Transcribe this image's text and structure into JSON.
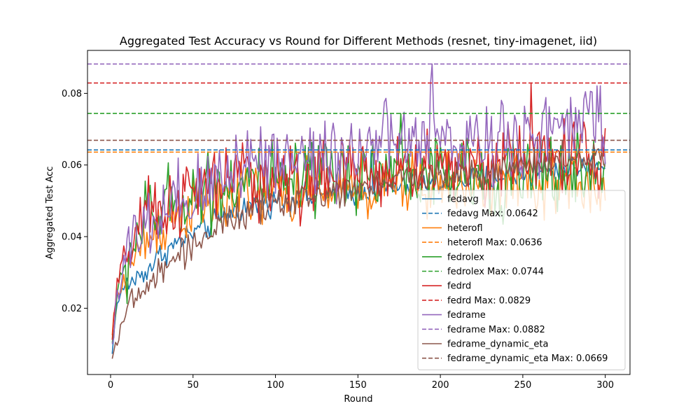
{
  "chart_data": {
    "type": "line",
    "title": "Aggregated Test Accuracy vs Round for Different Methods (resnet, tiny-imagenet, iid)",
    "xlabel": "Round",
    "ylabel": "Aggregated Test Acc",
    "xlim": [
      -14,
      315
    ],
    "ylim": [
      0.0015,
      0.092
    ],
    "xticks": [
      0,
      50,
      100,
      150,
      200,
      250,
      300
    ],
    "xtick_labels": [
      "0",
      "50",
      "100",
      "150",
      "200",
      "250",
      "300"
    ],
    "yticks": [
      0.02,
      0.04,
      0.06,
      0.08
    ],
    "ytick_labels": [
      "0.02",
      "0.04",
      "0.06",
      "0.08"
    ],
    "grid": false,
    "legend_position": "lower-right",
    "series": [
      {
        "name": "fedavg",
        "color": "#1f77b4",
        "max": 0.0642,
        "max_label": "fedavg Max: 0.0642",
        "anchors": [
          [
            1,
            0.007
          ],
          [
            3,
            0.019
          ],
          [
            6,
            0.024
          ],
          [
            10,
            0.027
          ],
          [
            15,
            0.028
          ],
          [
            20,
            0.03
          ],
          [
            25,
            0.032
          ],
          [
            30,
            0.035
          ],
          [
            40,
            0.038
          ],
          [
            50,
            0.041
          ],
          [
            60,
            0.043
          ],
          [
            70,
            0.046
          ],
          [
            80,
            0.048
          ],
          [
            90,
            0.049
          ],
          [
            100,
            0.05
          ],
          [
            120,
            0.051
          ],
          [
            140,
            0.052
          ],
          [
            160,
            0.053
          ],
          [
            180,
            0.054
          ],
          [
            200,
            0.055
          ],
          [
            220,
            0.056
          ],
          [
            240,
            0.057
          ],
          [
            260,
            0.058
          ],
          [
            280,
            0.059
          ],
          [
            300,
            0.06
          ]
        ],
        "noise": 0.0018
      },
      {
        "name": "heterofl",
        "color": "#ff7f0e",
        "max": 0.0636,
        "max_label": "heterofl Max: 0.0636",
        "anchors": [
          [
            1,
            0.012
          ],
          [
            3,
            0.02
          ],
          [
            6,
            0.025
          ],
          [
            10,
            0.03
          ],
          [
            15,
            0.034
          ],
          [
            20,
            0.038
          ],
          [
            30,
            0.043
          ],
          [
            40,
            0.046
          ],
          [
            50,
            0.048
          ],
          [
            60,
            0.049
          ],
          [
            70,
            0.05
          ],
          [
            80,
            0.051
          ],
          [
            100,
            0.052
          ],
          [
            120,
            0.052
          ],
          [
            140,
            0.053
          ],
          [
            160,
            0.053
          ],
          [
            180,
            0.054
          ],
          [
            200,
            0.054
          ],
          [
            220,
            0.055
          ],
          [
            240,
            0.055
          ],
          [
            260,
            0.055
          ],
          [
            280,
            0.055
          ],
          [
            300,
            0.052
          ]
        ],
        "noise": 0.0045
      },
      {
        "name": "fedrolex",
        "color": "#2ca02c",
        "max": 0.0744,
        "max_label": "fedrolex Max: 0.0744",
        "anchors": [
          [
            1,
            0.01
          ],
          [
            3,
            0.02
          ],
          [
            6,
            0.027
          ],
          [
            10,
            0.033
          ],
          [
            15,
            0.04
          ],
          [
            20,
            0.044
          ],
          [
            30,
            0.047
          ],
          [
            40,
            0.05
          ],
          [
            50,
            0.052
          ],
          [
            60,
            0.054
          ],
          [
            70,
            0.055
          ],
          [
            80,
            0.055
          ],
          [
            100,
            0.054
          ],
          [
            120,
            0.055
          ],
          [
            140,
            0.057
          ],
          [
            160,
            0.058
          ],
          [
            180,
            0.058
          ],
          [
            200,
            0.057
          ],
          [
            220,
            0.056
          ],
          [
            240,
            0.057
          ],
          [
            260,
            0.057
          ],
          [
            280,
            0.058
          ],
          [
            300,
            0.058
          ]
        ],
        "noise": 0.0055
      },
      {
        "name": "fedrd",
        "color": "#d62728",
        "max": 0.0829,
        "max_label": "fedrd Max: 0.0829",
        "anchors": [
          [
            1,
            0.011
          ],
          [
            3,
            0.022
          ],
          [
            6,
            0.03
          ],
          [
            10,
            0.036
          ],
          [
            15,
            0.041
          ],
          [
            20,
            0.044
          ],
          [
            30,
            0.047
          ],
          [
            40,
            0.05
          ],
          [
            50,
            0.052
          ],
          [
            60,
            0.054
          ],
          [
            70,
            0.056
          ],
          [
            80,
            0.057
          ],
          [
            100,
            0.056
          ],
          [
            120,
            0.056
          ],
          [
            140,
            0.057
          ],
          [
            160,
            0.058
          ],
          [
            180,
            0.059
          ],
          [
            200,
            0.06
          ],
          [
            220,
            0.061
          ],
          [
            240,
            0.061
          ],
          [
            260,
            0.062
          ],
          [
            280,
            0.063
          ],
          [
            300,
            0.06
          ]
        ],
        "noise": 0.0052
      },
      {
        "name": "fedrame",
        "color": "#9467bd",
        "max": 0.0882,
        "max_label": "fedrame Max: 0.0882",
        "anchors": [
          [
            1,
            0.01
          ],
          [
            3,
            0.021
          ],
          [
            6,
            0.028
          ],
          [
            10,
            0.034
          ],
          [
            15,
            0.038
          ],
          [
            20,
            0.041
          ],
          [
            30,
            0.044
          ],
          [
            40,
            0.047
          ],
          [
            50,
            0.05
          ],
          [
            60,
            0.054
          ],
          [
            70,
            0.058
          ],
          [
            80,
            0.062
          ],
          [
            100,
            0.063
          ],
          [
            120,
            0.062
          ],
          [
            140,
            0.064
          ],
          [
            160,
            0.066
          ],
          [
            180,
            0.066
          ],
          [
            200,
            0.067
          ],
          [
            220,
            0.067
          ],
          [
            240,
            0.068
          ],
          [
            260,
            0.069
          ],
          [
            280,
            0.07
          ],
          [
            300,
            0.075
          ]
        ],
        "noise": 0.0058
      },
      {
        "name": "fedrame_dynamic_eta",
        "color": "#8c564b",
        "max": 0.0669,
        "max_label": "fedrame_dynamic_eta Max: 0.0669",
        "anchors": [
          [
            1,
            0.006
          ],
          [
            3,
            0.01
          ],
          [
            6,
            0.015
          ],
          [
            10,
            0.019
          ],
          [
            15,
            0.022
          ],
          [
            20,
            0.025
          ],
          [
            30,
            0.03
          ],
          [
            40,
            0.034
          ],
          [
            50,
            0.038
          ],
          [
            60,
            0.041
          ],
          [
            70,
            0.044
          ],
          [
            80,
            0.046
          ],
          [
            100,
            0.049
          ],
          [
            120,
            0.051
          ],
          [
            140,
            0.053
          ],
          [
            160,
            0.055
          ],
          [
            180,
            0.056
          ],
          [
            200,
            0.057
          ],
          [
            220,
            0.058
          ],
          [
            240,
            0.059
          ],
          [
            260,
            0.06
          ],
          [
            280,
            0.061
          ],
          [
            300,
            0.062
          ]
        ],
        "noise": 0.0022
      }
    ]
  }
}
